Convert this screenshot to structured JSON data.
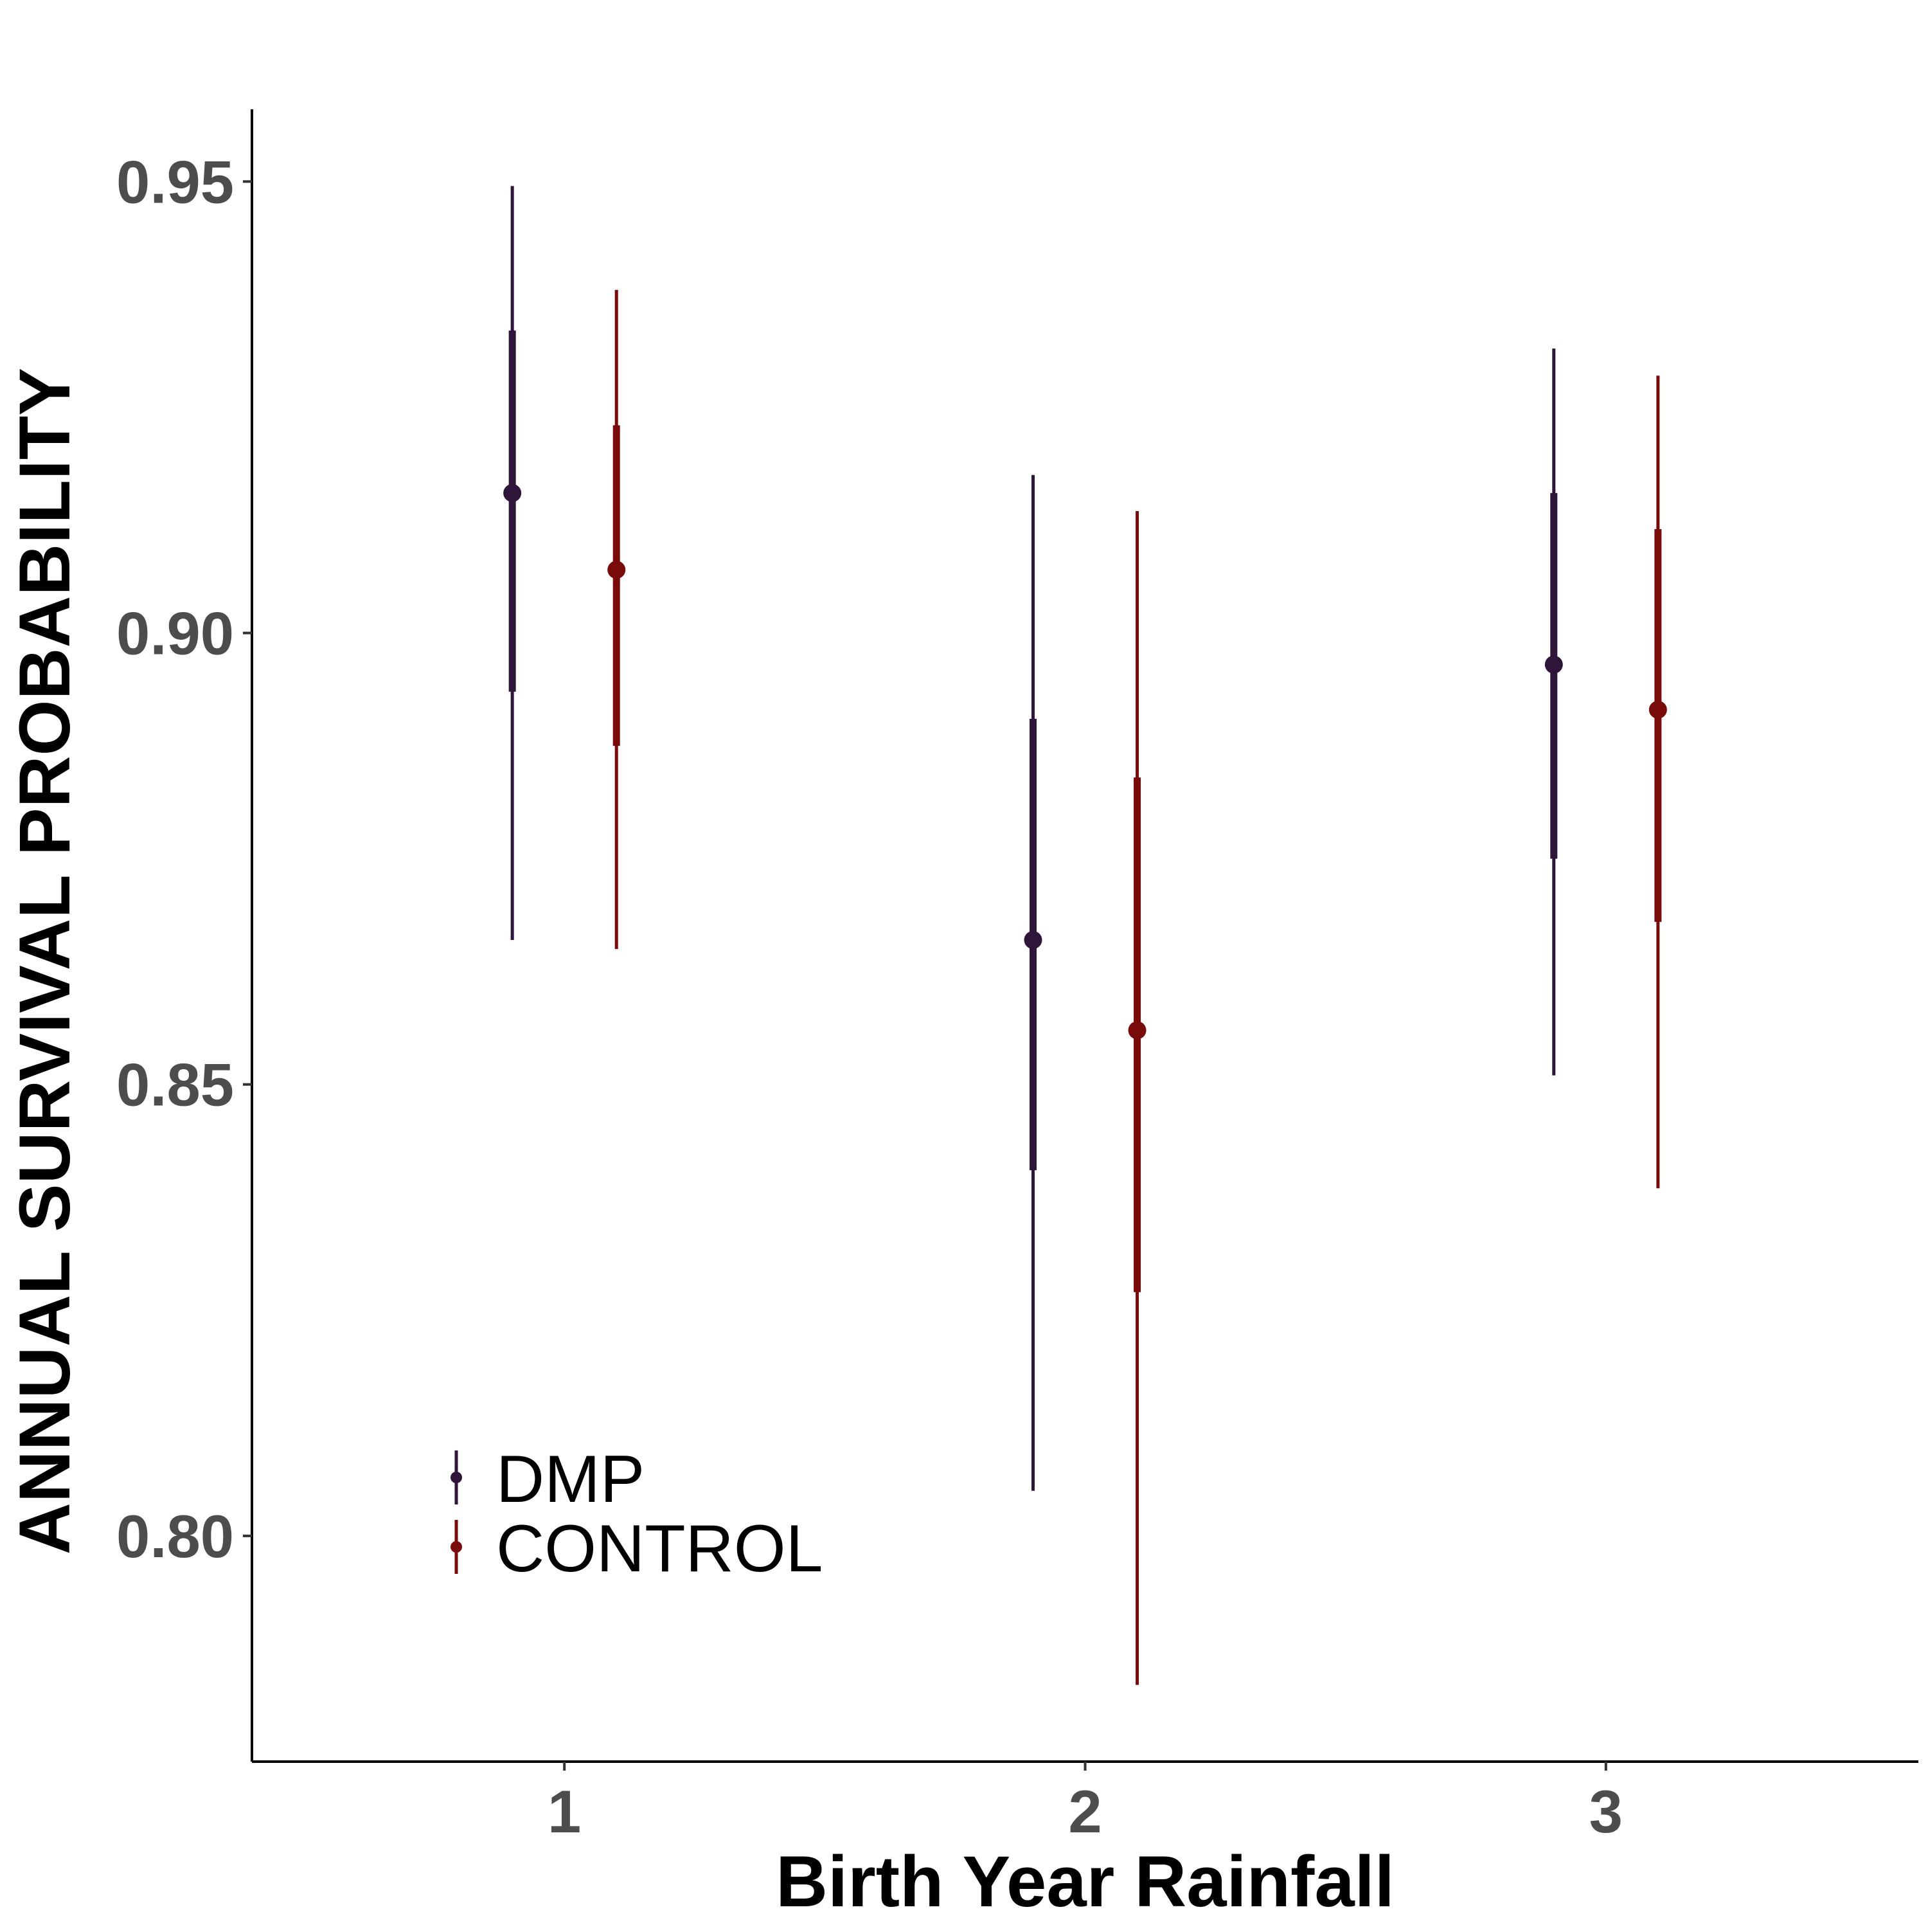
{
  "chart_data": {
    "type": "scatter",
    "title": "",
    "xlabel": "Birth Year Rainfall",
    "ylabel": "ANNUAL SURVIVAL PROBABILITY",
    "categories": [
      "1",
      "2",
      "3"
    ],
    "x": [
      1,
      2,
      3
    ],
    "xlim": [
      0.4,
      3.6
    ],
    "ylim": [
      0.775,
      0.958
    ],
    "yticks": [
      0.8,
      0.85,
      0.9,
      0.95
    ],
    "ytick_labels": [
      "0.80",
      "0.85",
      "0.90",
      "0.95"
    ],
    "grid": false,
    "legend": "bottom-left",
    "series": [
      {
        "name": "DMP",
        "color": "#2e1539",
        "offset": -0.1,
        "values": [
          0.9155,
          0.866,
          0.8965
        ],
        "inner_lower": [
          0.8935,
          0.8405,
          0.875
        ],
        "inner_upper": [
          0.9335,
          0.8905,
          0.9155
        ],
        "outer_lower": [
          0.866,
          0.805,
          0.851
        ],
        "outer_upper": [
          0.9495,
          0.9175,
          0.9315
        ]
      },
      {
        "name": "CONTROL",
        "color": "#7a0b0b",
        "offset": 0.1,
        "values": [
          0.907,
          0.856,
          0.8915
        ],
        "inner_lower": [
          0.8875,
          0.827,
          0.868
        ],
        "inner_upper": [
          0.923,
          0.884,
          0.9115
        ],
        "outer_lower": [
          0.865,
          0.7835,
          0.8385
        ],
        "outer_upper": [
          0.938,
          0.9135,
          0.9285
        ]
      }
    ]
  }
}
